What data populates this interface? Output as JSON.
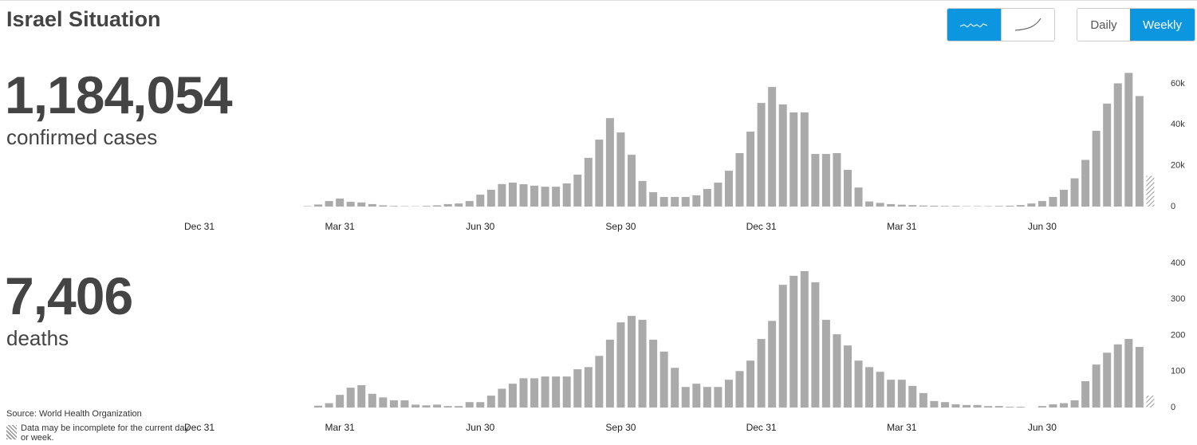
{
  "title": "Israel Situation",
  "view_toggle": [
    "Daily",
    "Weekly"
  ],
  "summary": [
    {
      "value": "1,184,054",
      "label": "confirmed cases"
    },
    {
      "value": "7,406",
      "label": "deaths"
    }
  ],
  "source": "Source: World Health Organization",
  "note": "Data may be incomplete for the current day or week.",
  "chart_data": [
    {
      "type": "bar",
      "color": "#aaaaaa",
      "last_bar_hatched": true,
      "categories": [
        "Dec 31",
        null,
        null,
        null,
        null,
        null,
        null,
        null,
        null,
        null,
        null,
        null,
        null,
        "Mar 31",
        null,
        null,
        null,
        null,
        null,
        null,
        null,
        null,
        null,
        null,
        null,
        null,
        "Jun 30",
        null,
        null,
        null,
        null,
        null,
        null,
        null,
        null,
        null,
        null,
        null,
        null,
        "Sep 30",
        null,
        null,
        null,
        null,
        null,
        null,
        null,
        null,
        null,
        null,
        null,
        null,
        "Dec 31",
        null,
        null,
        null,
        null,
        null,
        null,
        null,
        null,
        null,
        null,
        null,
        null,
        "Mar 31",
        null,
        null,
        null,
        null,
        null,
        null,
        null,
        null,
        null,
        null,
        null,
        null,
        "Jun 30",
        null,
        null,
        null,
        null,
        null,
        null,
        null,
        null,
        null,
        null
      ],
      "values": [
        null,
        null,
        null,
        null,
        null,
        null,
        null,
        null,
        null,
        null,
        200,
        1000,
        2700,
        3900,
        2300,
        2000,
        1200,
        600,
        300,
        200,
        150,
        300,
        600,
        1200,
        1500,
        2700,
        5800,
        8200,
        11000,
        11700,
        10900,
        10200,
        9700,
        9700,
        11300,
        15600,
        23800,
        32700,
        43200,
        36200,
        25300,
        12500,
        7000,
        4700,
        4700,
        4700,
        5500,
        8600,
        11700,
        17500,
        26100,
        36600,
        50600,
        58400,
        49900,
        46000,
        46000,
        25700,
        25700,
        26100,
        17900,
        9300,
        2500,
        1800,
        1200,
        900,
        700,
        500,
        400,
        300,
        300,
        200,
        200,
        200,
        300,
        400,
        700,
        1500,
        2700,
        4700,
        8200,
        13800,
        22800,
        37000,
        50300,
        60200,
        65300,
        54000,
        15000
      ],
      "ylim": [
        0,
        66000
      ],
      "yticks": [
        0,
        {
          "value": 20000,
          "label": "20k"
        },
        {
          "value": 40000,
          "label": "40k"
        },
        {
          "value": 60000,
          "label": "60k"
        }
      ]
    },
    {
      "type": "bar",
      "color": "#aaaaaa",
      "last_bar_hatched": true,
      "categories": [
        "Dec 31",
        null,
        null,
        null,
        null,
        null,
        null,
        null,
        null,
        null,
        null,
        null,
        null,
        "Mar 31",
        null,
        null,
        null,
        null,
        null,
        null,
        null,
        null,
        null,
        null,
        null,
        null,
        "Jun 30",
        null,
        null,
        null,
        null,
        null,
        null,
        null,
        null,
        null,
        null,
        null,
        null,
        "Sep 30",
        null,
        null,
        null,
        null,
        null,
        null,
        null,
        null,
        null,
        null,
        null,
        null,
        "Dec 31",
        null,
        null,
        null,
        null,
        null,
        null,
        null,
        null,
        null,
        null,
        null,
        null,
        "Mar 31",
        null,
        null,
        null,
        null,
        null,
        null,
        null,
        null,
        null,
        null,
        null,
        null,
        "Jun 30",
        null,
        null,
        null,
        null,
        null,
        null,
        null,
        null,
        null,
        null
      ],
      "values": [
        null,
        null,
        null,
        null,
        null,
        null,
        null,
        null,
        null,
        null,
        null,
        5,
        12,
        35,
        55,
        62,
        38,
        28,
        20,
        20,
        8,
        6,
        8,
        4,
        4,
        15,
        15,
        33,
        52,
        66,
        81,
        81,
        86,
        86,
        86,
        106,
        112,
        143,
        188,
        236,
        254,
        243,
        188,
        155,
        110,
        57,
        66,
        57,
        57,
        77,
        101,
        130,
        190,
        240,
        340,
        365,
        378,
        347,
        243,
        203,
        172,
        130,
        112,
        99,
        77,
        77,
        60,
        40,
        18,
        15,
        9,
        7,
        7,
        4,
        4,
        2,
        2,
        null,
        4,
        9,
        12,
        20,
        73,
        119,
        152,
        175,
        190,
        168,
        33
      ],
      "ylim": [
        0,
        400
      ],
      "yticks": [
        0,
        100,
        200,
        300,
        400
      ]
    }
  ]
}
